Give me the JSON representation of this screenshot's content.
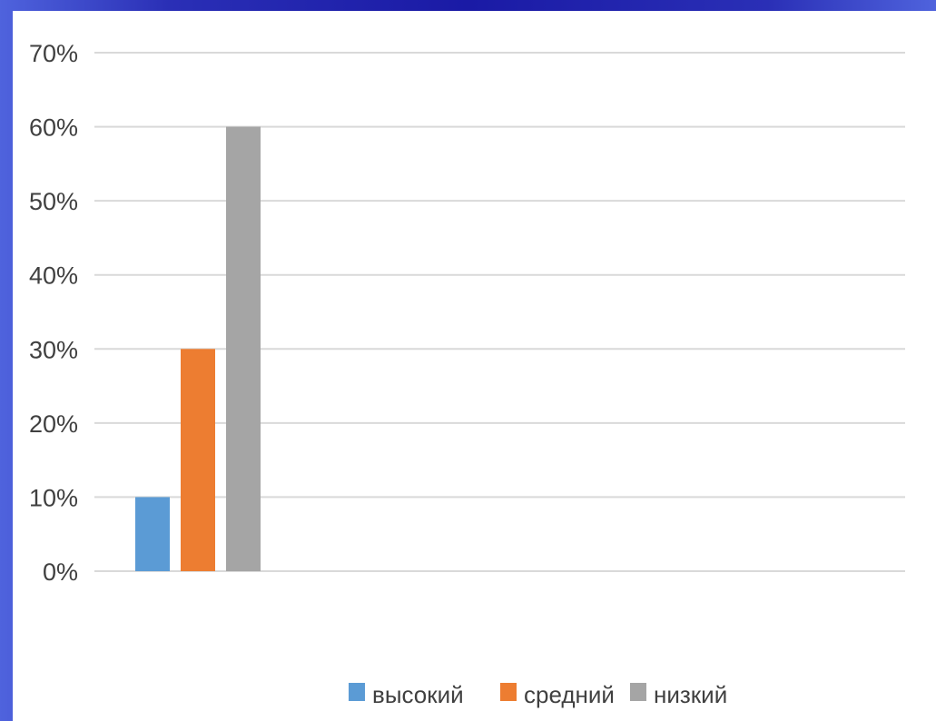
{
  "chart_data": {
    "type": "bar",
    "categories": [
      ""
    ],
    "series": [
      {
        "name": "высокий",
        "values": [
          10
        ],
        "color": "#5b9bd5"
      },
      {
        "name": "средний",
        "values": [
          30
        ],
        "color": "#ed7d31"
      },
      {
        "name": "низкий",
        "values": [
          60
        ],
        "color": "#a5a5a5"
      }
    ],
    "y_ticks": [
      "0%",
      "10%",
      "20%",
      "30%",
      "40%",
      "50%",
      "60%",
      "70%"
    ],
    "ylim": [
      0,
      70
    ],
    "y_unit": "%",
    "grid": true,
    "legend_position": "bottom"
  }
}
